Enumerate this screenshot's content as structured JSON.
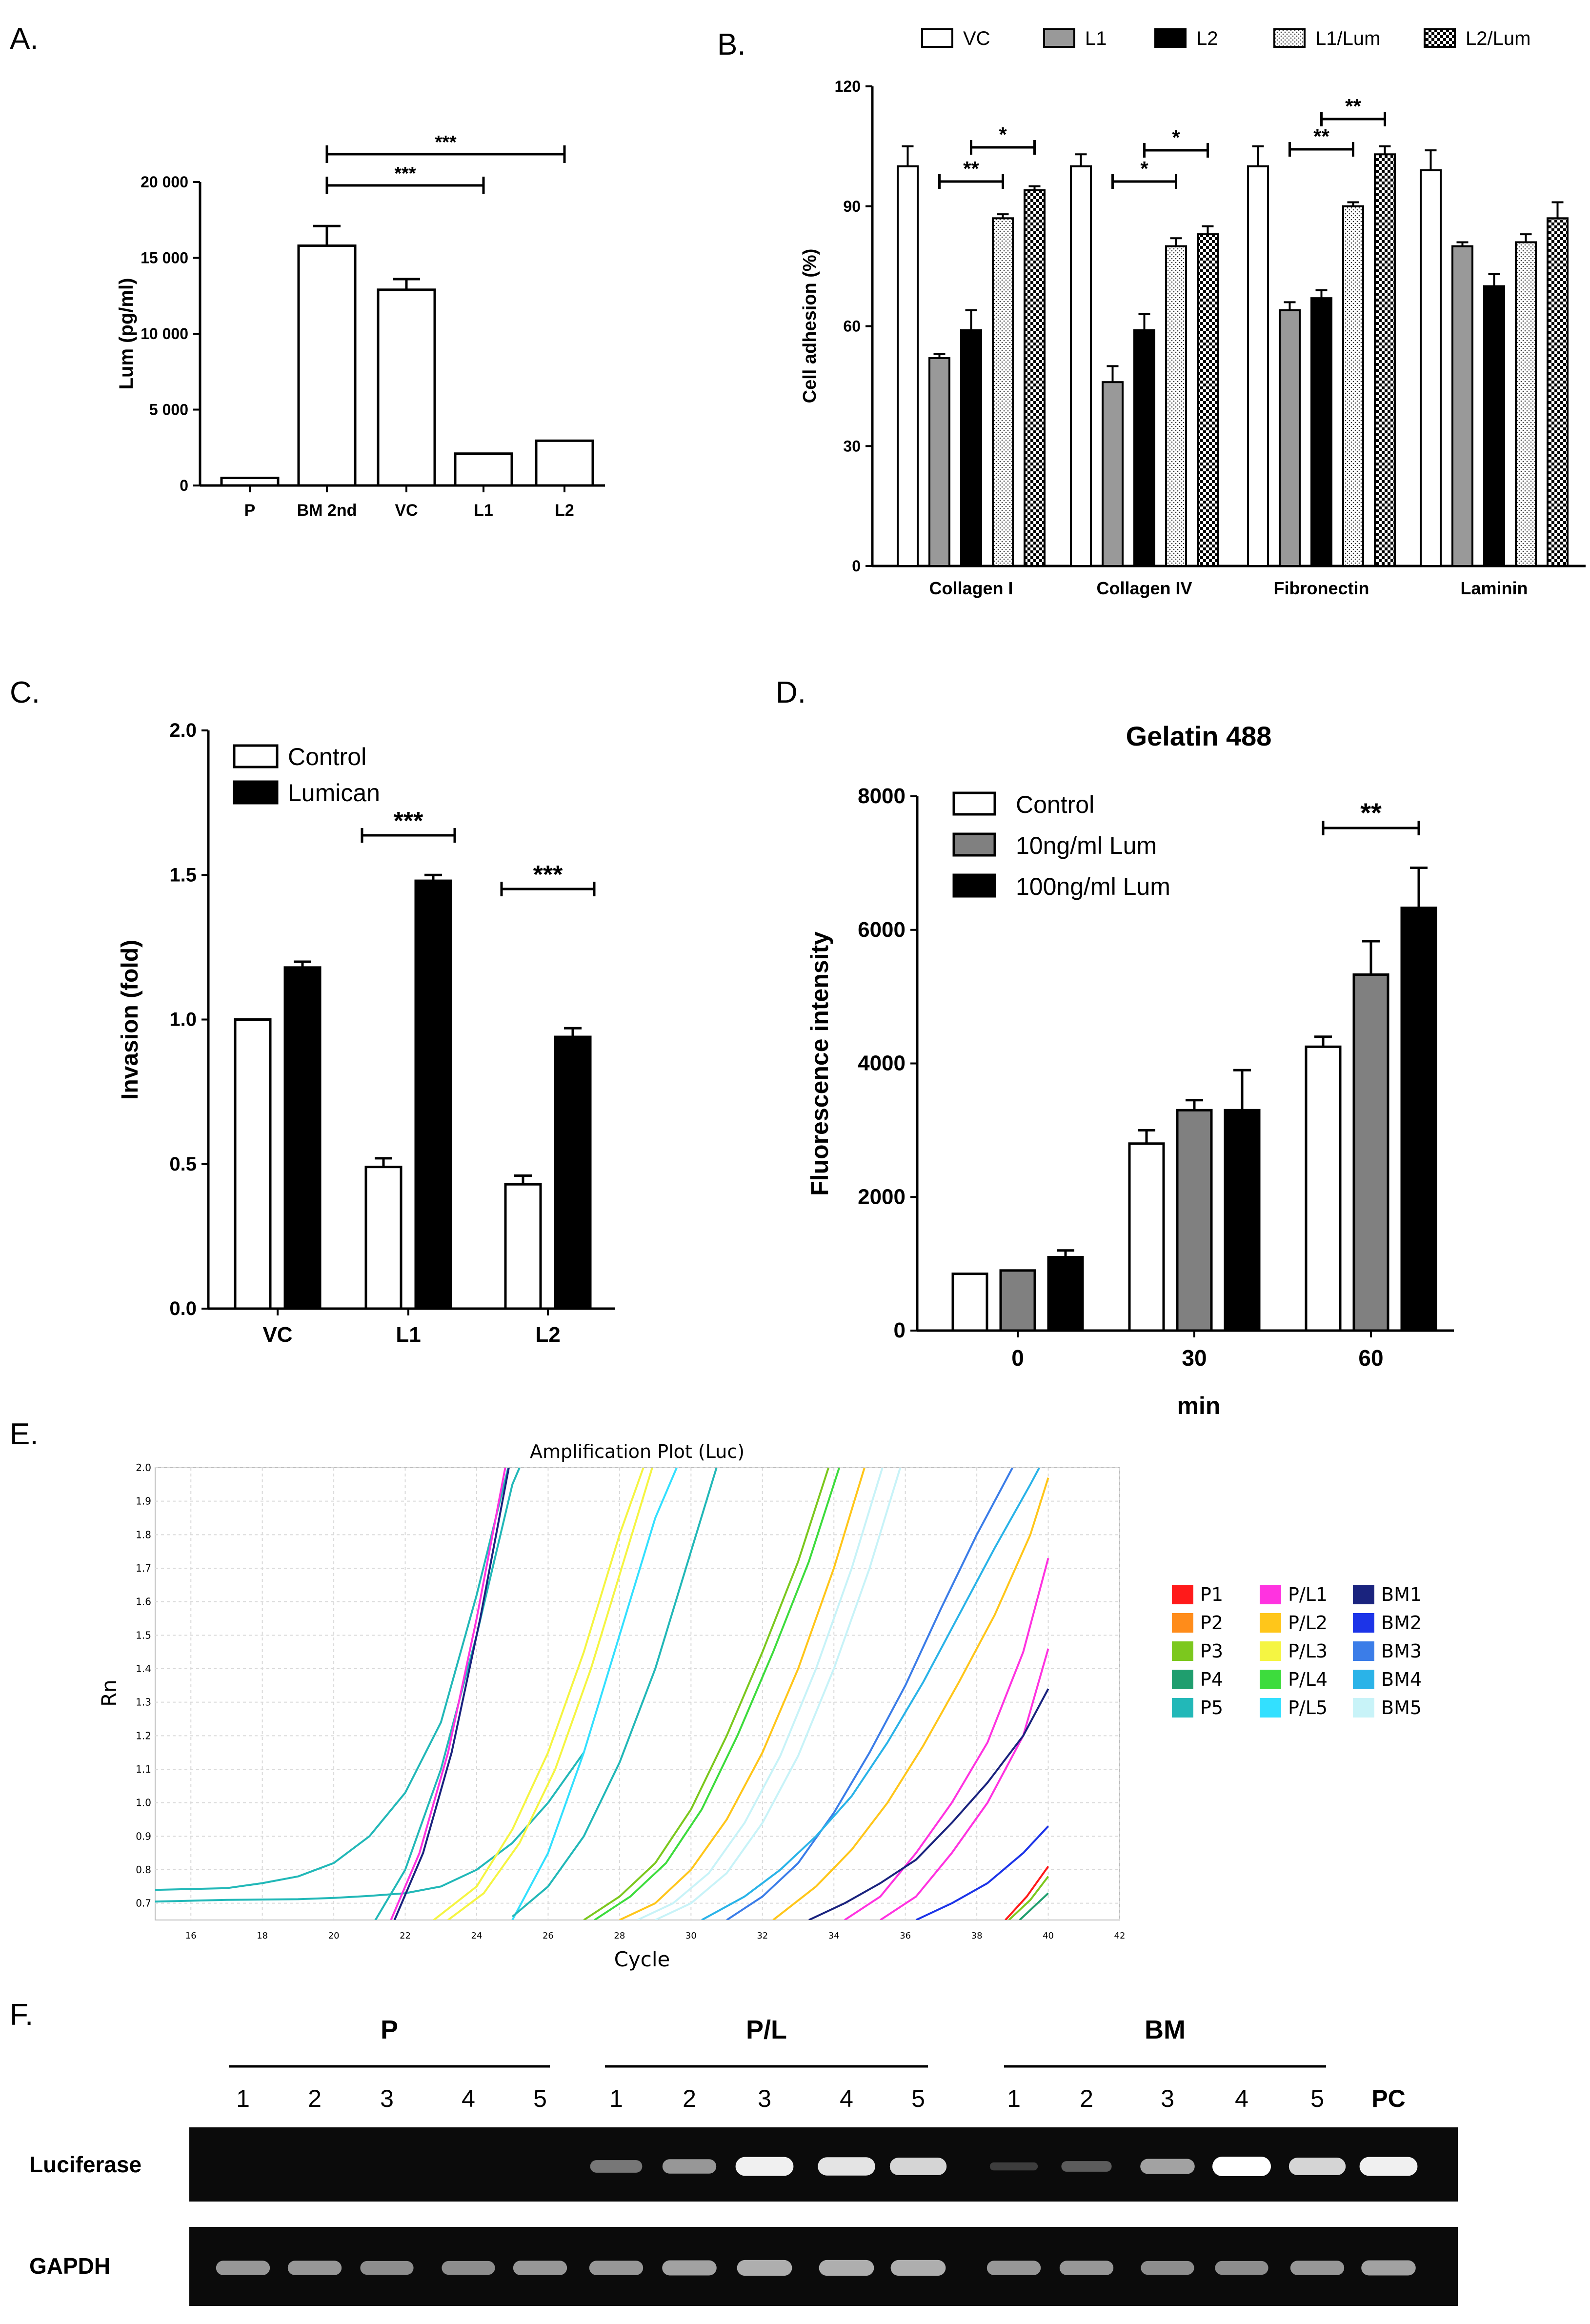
{
  "panels": {
    "a": "A.",
    "b": "B.",
    "c": "C.",
    "d": "D.",
    "e": "E.",
    "f": "F."
  },
  "chart_data": [
    {
      "id": "A",
      "type": "bar",
      "categories": [
        "P",
        "BM 2nd",
        "VC",
        "L1",
        "L2"
      ],
      "values": [
        500,
        15800,
        12900,
        2100,
        2950
      ],
      "errors": [
        0,
        1300,
        700,
        0,
        0
      ],
      "ylabel": "Lum (pg/ml)",
      "yticks": [
        0,
        5000,
        10000,
        15000,
        20000
      ],
      "ytick_labels": [
        "0",
        "5 000",
        "10 000",
        "15 000",
        "20 000"
      ],
      "ylim": [
        0,
        20000
      ],
      "sig": [
        {
          "from": 1,
          "to": 3,
          "label": "***"
        },
        {
          "from": 1,
          "to": 4,
          "label": "***"
        }
      ]
    },
    {
      "id": "B",
      "type": "bar",
      "categories": [
        "Collagen I",
        "Collagen IV",
        "Fibronectin",
        "Laminin"
      ],
      "series": [
        {
          "name": "VC",
          "values": [
            100,
            100,
            100,
            99
          ],
          "errors": [
            5,
            3,
            5,
            5
          ]
        },
        {
          "name": "L1",
          "values": [
            52,
            46,
            64,
            80
          ],
          "errors": [
            1,
            4,
            2,
            1
          ]
        },
        {
          "name": "L2",
          "values": [
            59,
            59,
            67,
            70
          ],
          "errors": [
            5,
            4,
            2,
            3
          ]
        },
        {
          "name": "L1/Lum",
          "values": [
            87,
            80,
            90,
            81
          ],
          "errors": [
            1,
            2,
            1,
            2
          ]
        },
        {
          "name": "L2/Lum",
          "values": [
            94,
            83,
            103,
            87
          ],
          "errors": [
            1,
            2,
            2,
            4
          ]
        }
      ],
      "ylabel": "Cell adhesion (%)",
      "yticks": [
        0,
        30,
        60,
        90,
        120
      ],
      "ylim": [
        0,
        120
      ],
      "sig": [
        {
          "group": 0,
          "from": 1,
          "to": 3,
          "label": "**"
        },
        {
          "group": 0,
          "from": 2,
          "to": 4,
          "label": "*"
        },
        {
          "group": 1,
          "from": 1,
          "to": 3,
          "label": "*"
        },
        {
          "group": 1,
          "from": 2,
          "to": 4,
          "label": "*"
        },
        {
          "group": 2,
          "from": 1,
          "to": 3,
          "label": "**"
        },
        {
          "group": 2,
          "from": 2,
          "to": 4,
          "label": "**"
        }
      ]
    },
    {
      "id": "C",
      "type": "bar",
      "categories": [
        "VC",
        "L1",
        "L2"
      ],
      "series": [
        {
          "name": "Control",
          "values": [
            1.0,
            0.49,
            0.43
          ],
          "errors": [
            0,
            0.03,
            0.03
          ]
        },
        {
          "name": "Lumican",
          "values": [
            1.18,
            1.48,
            0.94
          ],
          "errors": [
            0.02,
            0.02,
            0.03
          ]
        }
      ],
      "ylabel": "Invasion (fold)",
      "yticks": [
        0,
        0.5,
        1.0,
        1.5,
        2.0
      ],
      "ytick_labels": [
        "0.0",
        "0.5",
        "1.0",
        "1.5",
        "2.0"
      ],
      "ylim": [
        0,
        2.0
      ],
      "sig": [
        {
          "group": 1,
          "label": "***"
        },
        {
          "group": 2,
          "label": "***"
        }
      ]
    },
    {
      "id": "D",
      "type": "bar",
      "title": "Gelatin 488",
      "categories": [
        "0",
        "30",
        "60"
      ],
      "series": [
        {
          "name": "Control",
          "values": [
            850,
            2800,
            4250
          ],
          "errors": [
            0,
            200,
            150
          ]
        },
        {
          "name": "10ng/ml Lum",
          "values": [
            900,
            3300,
            5330
          ],
          "errors": [
            0,
            150,
            500
          ]
        },
        {
          "name": "100ng/ml Lum",
          "values": [
            1100,
            3300,
            6330
          ],
          "errors": [
            100,
            600,
            600
          ]
        }
      ],
      "xlabel": "min",
      "ylabel": "Fluorescence intensity",
      "yticks": [
        0,
        2000,
        4000,
        6000,
        8000
      ],
      "ylim": [
        0,
        8000
      ],
      "sig": [
        {
          "group": 2,
          "label": "**"
        }
      ]
    },
    {
      "id": "E",
      "type": "line",
      "title": "Amplification Plot (Luc)",
      "xlabel": "Cycle",
      "ylabel": "Rn",
      "xlim": [
        15,
        42
      ],
      "ylim": [
        0.65,
        2.0
      ],
      "xticks": [
        16,
        18,
        20,
        22,
        24,
        26,
        28,
        30,
        32,
        34,
        36,
        38,
        40,
        42
      ],
      "yticks": [
        0.7,
        0.8,
        0.9,
        1.0,
        1.1,
        1.2,
        1.3,
        1.4,
        1.5,
        1.6,
        1.7,
        1.8,
        1.9,
        2.0
      ],
      "ytick_labels": [
        "0.7",
        "0.8",
        "0.9",
        "1.0",
        "1.1",
        "1.2",
        "1.3",
        "1.4",
        "1.5",
        "1.6",
        "1.7",
        "1.8",
        "1.9",
        "2.0"
      ],
      "legend": [
        {
          "name": "P1",
          "color": "#ff1a1a"
        },
        {
          "name": "P2",
          "color": "#ff8c1a"
        },
        {
          "name": "P3",
          "color": "#7cc81e"
        },
        {
          "name": "P4",
          "color": "#1f9e6e"
        },
        {
          "name": "P5",
          "color": "#22b8b8"
        },
        {
          "name": "P/L1",
          "color": "#ff33e0"
        },
        {
          "name": "P/L2",
          "color": "#ffc61a"
        },
        {
          "name": "P/L3",
          "color": "#f5f542"
        },
        {
          "name": "P/L4",
          "color": "#3ddc3d"
        },
        {
          "name": "P/L5",
          "color": "#33e0ff"
        },
        {
          "name": "BM1",
          "color": "#1a237e"
        },
        {
          "name": "BM2",
          "color": "#1c34e8"
        },
        {
          "name": "BM3",
          "color": "#3b7de8"
        },
        {
          "name": "BM4",
          "color": "#2ab3e8"
        },
        {
          "name": "BM5",
          "color": "#c8f3f8"
        }
      ],
      "series": [
        {
          "color": "#22b8b8",
          "x": [
            15,
            17,
            18,
            19,
            20,
            21,
            22,
            23,
            24,
            25,
            26
          ],
          "y": [
            0.74,
            0.745,
            0.76,
            0.78,
            0.82,
            0.9,
            1.03,
            1.24,
            1.62,
            2.05,
            2.3
          ]
        },
        {
          "color": "#22b8b8",
          "x": [
            15,
            17,
            19,
            20,
            21,
            22,
            23,
            24,
            25,
            26,
            27
          ],
          "y": [
            0.705,
            0.71,
            0.712,
            0.716,
            0.722,
            0.73,
            0.75,
            0.8,
            0.88,
            1.0,
            1.15
          ]
        },
        {
          "color": "#22b8b8",
          "x": [
            21,
            22,
            23,
            24,
            25,
            26
          ],
          "y": [
            0.62,
            0.8,
            1.1,
            1.5,
            1.95,
            2.2
          ]
        },
        {
          "color": "#ff33e0",
          "x": [
            21.6,
            22.4,
            23.2,
            24,
            24.8
          ],
          "y": [
            0.65,
            0.85,
            1.15,
            1.55,
            2.0
          ]
        },
        {
          "color": "#1a237e",
          "x": [
            21.7,
            22.5,
            23.3,
            24.1,
            24.9
          ],
          "y": [
            0.65,
            0.85,
            1.15,
            1.55,
            2.0
          ]
        },
        {
          "color": "#33e0ff",
          "x": [
            25,
            26,
            27,
            28,
            29,
            30
          ],
          "y": [
            0.65,
            0.85,
            1.15,
            1.5,
            1.85,
            2.1
          ]
        },
        {
          "color": "#22b8b8",
          "x": [
            25,
            26,
            27,
            28,
            29,
            30,
            31
          ],
          "y": [
            0.66,
            0.75,
            0.9,
            1.12,
            1.4,
            1.75,
            2.1
          ]
        },
        {
          "color": "#f5f542",
          "x": [
            22.8,
            24,
            25,
            26,
            27,
            28,
            29
          ],
          "y": [
            0.65,
            0.75,
            0.92,
            1.15,
            1.45,
            1.8,
            2.1
          ]
        },
        {
          "color": "#f5f542",
          "x": [
            23.2,
            24.2,
            25.2,
            26.2,
            27.2,
            28.2,
            29.2
          ],
          "y": [
            0.65,
            0.73,
            0.88,
            1.1,
            1.4,
            1.75,
            2.1
          ]
        },
        {
          "color": "#7cc81e",
          "x": [
            27,
            28,
            29,
            30,
            31,
            32,
            33,
            34
          ],
          "y": [
            0.65,
            0.72,
            0.82,
            0.98,
            1.2,
            1.45,
            1.72,
            2.05
          ]
        },
        {
          "color": "#3ddc3d",
          "x": [
            27.3,
            28.3,
            29.3,
            30.3,
            31.3,
            32.3,
            33.3,
            34.3
          ],
          "y": [
            0.65,
            0.72,
            0.82,
            0.98,
            1.2,
            1.45,
            1.72,
            2.05
          ]
        },
        {
          "color": "#ffc61a",
          "x": [
            28,
            29,
            30,
            31,
            32,
            33,
            34,
            35
          ],
          "y": [
            0.65,
            0.7,
            0.8,
            0.95,
            1.15,
            1.4,
            1.7,
            2.05
          ]
        },
        {
          "color": "#c8f3f8",
          "x": [
            28.5,
            29.5,
            30.5,
            31.5,
            32.5,
            33.5,
            34.5,
            35.5
          ],
          "y": [
            0.65,
            0.7,
            0.79,
            0.94,
            1.14,
            1.4,
            1.7,
            2.05
          ]
        },
        {
          "color": "#c8f3f8",
          "x": [
            29,
            30,
            31,
            32,
            33,
            34,
            35,
            36
          ],
          "y": [
            0.65,
            0.7,
            0.79,
            0.94,
            1.14,
            1.4,
            1.7,
            2.05
          ]
        },
        {
          "color": "#3b7de8",
          "x": [
            31,
            32,
            33,
            34,
            35,
            36,
            37,
            38,
            39,
            40
          ],
          "y": [
            0.65,
            0.72,
            0.82,
            0.97,
            1.15,
            1.35,
            1.58,
            1.8,
            2.0,
            2.1
          ]
        },
        {
          "color": "#2ab3e8",
          "x": [
            30.3,
            31.5,
            32.5,
            33.5,
            34.5,
            35.5,
            36.5,
            37.5,
            38.5,
            39.5,
            40
          ],
          "y": [
            0.65,
            0.72,
            0.8,
            0.9,
            1.02,
            1.18,
            1.36,
            1.56,
            1.76,
            1.95,
            2.05
          ]
        },
        {
          "color": "#ffc61a",
          "x": [
            32.3,
            33.5,
            34.5,
            35.5,
            36.5,
            37.5,
            38.5,
            39.5,
            40
          ],
          "y": [
            0.65,
            0.75,
            0.86,
            1.0,
            1.17,
            1.36,
            1.56,
            1.8,
            1.97
          ]
        },
        {
          "color": "#ff33e0",
          "x": [
            34.3,
            35.3,
            36.3,
            37.3,
            38.3,
            39.3,
            40
          ],
          "y": [
            0.65,
            0.72,
            0.85,
            1.0,
            1.18,
            1.45,
            1.73
          ]
        },
        {
          "color": "#ff33e0",
          "x": [
            35.3,
            36.3,
            37.3,
            38.3,
            39.3,
            40
          ],
          "y": [
            0.65,
            0.72,
            0.85,
            1.0,
            1.2,
            1.46
          ]
        },
        {
          "color": "#1a237e",
          "x": [
            33.3,
            34.3,
            35.3,
            36.3,
            37.3,
            38.3,
            39.3,
            40
          ],
          "y": [
            0.65,
            0.7,
            0.76,
            0.83,
            0.94,
            1.06,
            1.2,
            1.34
          ]
        },
        {
          "color": "#1c34e8",
          "x": [
            36.3,
            37.3,
            38.3,
            39.3,
            40
          ],
          "y": [
            0.65,
            0.7,
            0.76,
            0.85,
            0.93
          ]
        },
        {
          "color": "#ff1a1a",
          "x": [
            38.8,
            39.4,
            40
          ],
          "y": [
            0.65,
            0.72,
            0.81
          ]
        },
        {
          "color": "#7cc81e",
          "x": [
            38.9,
            39.5,
            40
          ],
          "y": [
            0.65,
            0.71,
            0.78
          ]
        },
        {
          "color": "#1f9e6e",
          "x": [
            39.2,
            39.7,
            40
          ],
          "y": [
            0.65,
            0.7,
            0.73
          ]
        }
      ]
    }
  ],
  "gel": {
    "groups": [
      {
        "label": "P"
      },
      {
        "label": "P/L"
      },
      {
        "label": "BM"
      }
    ],
    "lanes": [
      "1",
      "2",
      "3",
      "4",
      "5",
      "1",
      "2",
      "3",
      "4",
      "5",
      "1",
      "2",
      "3",
      "4",
      "5",
      "PC"
    ],
    "rows": [
      {
        "label": "Luciferase",
        "intensity": [
          0,
          0,
          0,
          0,
          0,
          0.45,
          0.6,
          0.95,
          0.9,
          0.85,
          0.1,
          0.3,
          0.65,
          1.0,
          0.85,
          0.95
        ]
      },
      {
        "label": "GAPDH",
        "intensity": [
          0.6,
          0.6,
          0.55,
          0.55,
          0.6,
          0.6,
          0.65,
          0.7,
          0.7,
          0.7,
          0.6,
          0.6,
          0.55,
          0.55,
          0.6,
          0.65
        ]
      }
    ]
  }
}
